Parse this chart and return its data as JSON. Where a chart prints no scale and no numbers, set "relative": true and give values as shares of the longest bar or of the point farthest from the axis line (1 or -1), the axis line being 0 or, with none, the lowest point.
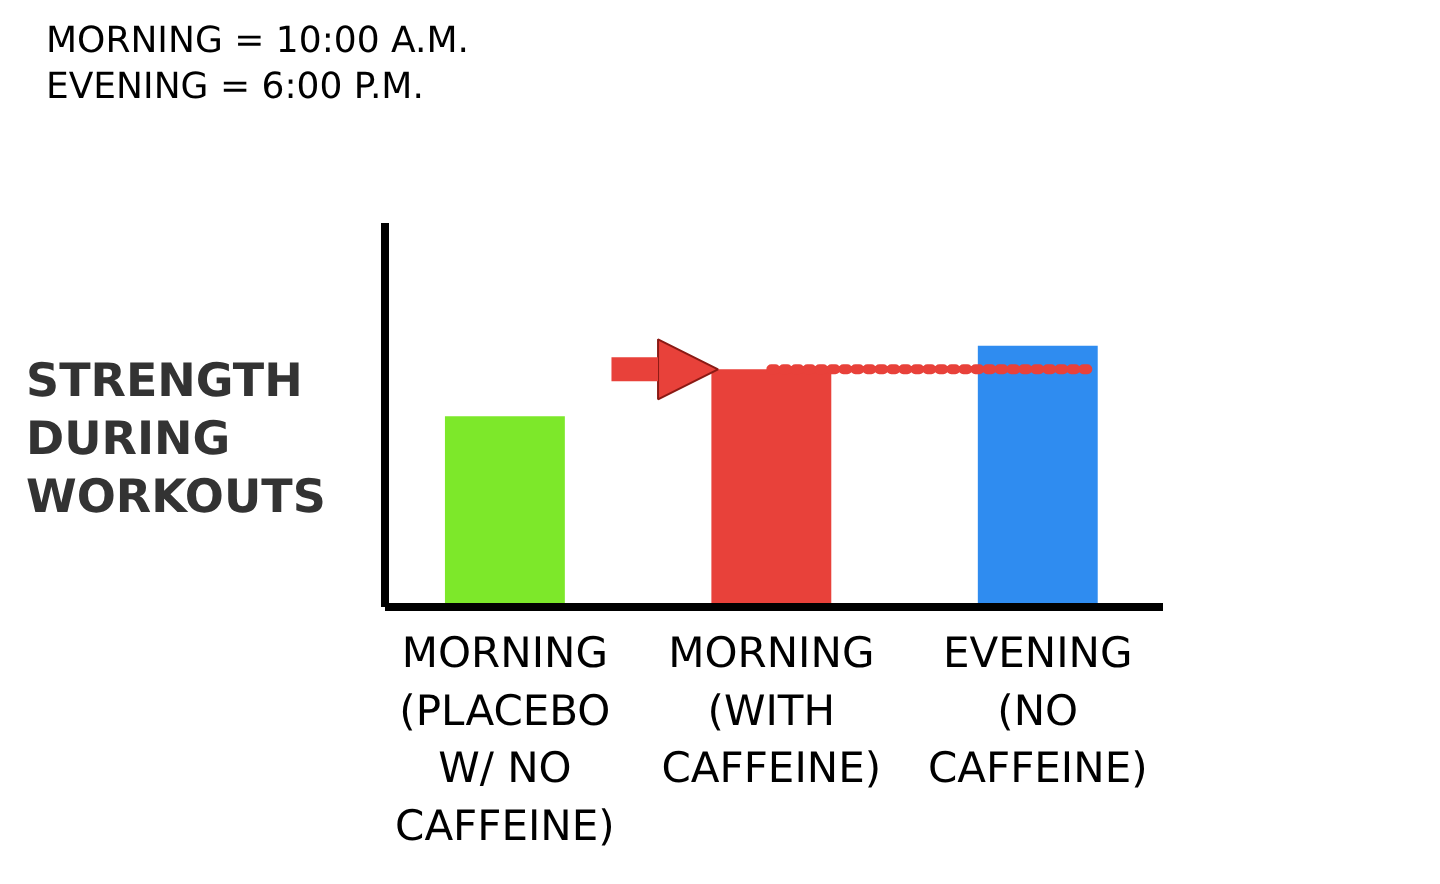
{
  "chart_data": {
    "type": "bar",
    "relative": true,
    "categories": [
      "MORNING\n(PLACEBO\nW/ NO\nCAFFEINE)",
      "MORNING\n(WITH\nCAFFEINE)",
      "EVENING\n(NO\nCAFFEINE)"
    ],
    "values": [
      0.73,
      0.91,
      1
    ],
    "colors": [
      "#7de82a",
      "#e8413a",
      "#2f8cf0"
    ],
    "ylabel": "STRENGTH\nDURING\nWORKOUTS",
    "annotations": [
      "MORNING = 10:00 A.M.\nEVENING = 6:00 P.M."
    ],
    "ref_lines": [
      {
        "axis": "y",
        "value": 0.91,
        "label": null,
        "color": "#e8413a",
        "line_style": "dotted"
      }
    ],
    "grid": false
  }
}
